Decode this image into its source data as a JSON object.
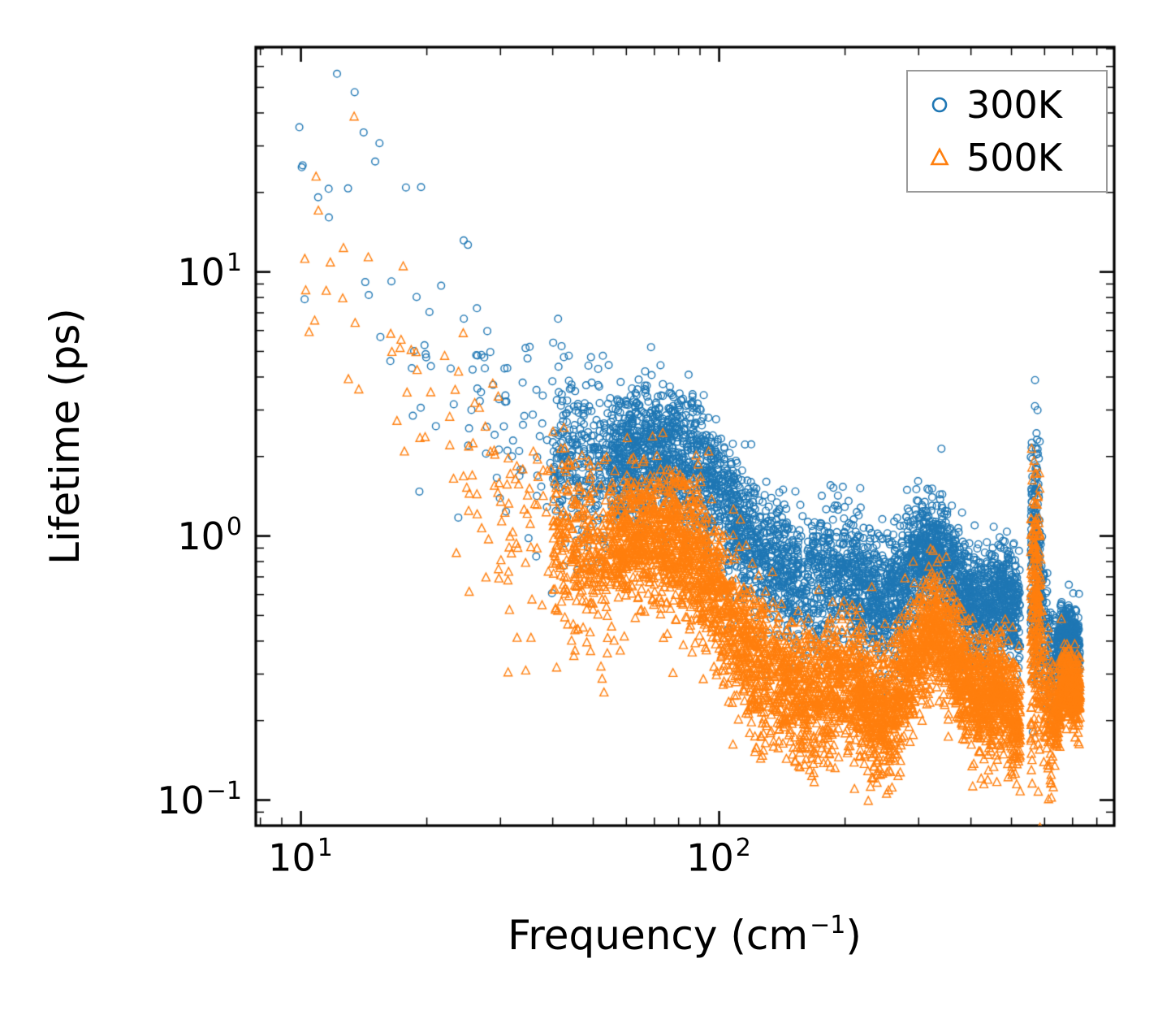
{
  "chart_data": {
    "type": "scatter",
    "title": "",
    "xlabel": "Frequency (cm⁻¹)",
    "xlabel_parts": {
      "pre": "Frequency (cm",
      "sup": "−1",
      "post": ")"
    },
    "ylabel": "Lifetime (ps)",
    "xscale": "log",
    "yscale": "log",
    "xlim": [
      7.8,
      880
    ],
    "ylim": [
      0.08,
      71
    ],
    "grid": false,
    "xticks": [
      {
        "value": 10,
        "base": "10",
        "exp": "1"
      },
      {
        "value": 100,
        "base": "10",
        "exp": "2"
      }
    ],
    "yticks": [
      {
        "value": 0.1,
        "base": "10",
        "exp": "−1"
      },
      {
        "value": 1,
        "base": "10",
        "exp": "0"
      },
      {
        "value": 10,
        "base": "10",
        "exp": "1"
      }
    ],
    "legend": {
      "position": "upper right",
      "items": [
        {
          "label": "300K",
          "marker": "circle",
          "color": "#1f77b4"
        },
        {
          "label": "500K",
          "marker": "triangle",
          "color": "#ff7f0e"
        }
      ]
    },
    "representation": "dense scatter summarized as log-log median trend anchors [frequency cm^-1, lifetime ps] plus frequency bands [fmin, fmax, point_count, vertical_spread_dex]",
    "series": [
      {
        "name": "300K",
        "marker": "circle",
        "color": "#1f77b4",
        "trend_loglog": [
          [
            9.5,
            18
          ],
          [
            10,
            20
          ],
          [
            12,
            26
          ],
          [
            14,
            18
          ],
          [
            16,
            9
          ],
          [
            18,
            6.5
          ],
          [
            20,
            5
          ],
          [
            23,
            4
          ],
          [
            26,
            3.3
          ],
          [
            30,
            2.8
          ],
          [
            35,
            2.4
          ],
          [
            40,
            2.15
          ],
          [
            45,
            2.0
          ],
          [
            50,
            1.9
          ],
          [
            55,
            1.95
          ],
          [
            60,
            2.05
          ],
          [
            70,
            2.1
          ],
          [
            80,
            2.05
          ],
          [
            90,
            1.85
          ],
          [
            100,
            1.45
          ],
          [
            110,
            1.15
          ],
          [
            120,
            0.95
          ],
          [
            130,
            0.85
          ],
          [
            145,
            0.72
          ],
          [
            160,
            0.64
          ],
          [
            175,
            0.68
          ],
          [
            190,
            0.73
          ],
          [
            205,
            0.72
          ],
          [
            220,
            0.64
          ],
          [
            240,
            0.55
          ],
          [
            255,
            0.58
          ],
          [
            270,
            0.66
          ],
          [
            285,
            0.76
          ],
          [
            300,
            0.85
          ],
          [
            315,
            0.9
          ],
          [
            330,
            0.88
          ],
          [
            345,
            0.82
          ],
          [
            360,
            0.74
          ],
          [
            375,
            0.66
          ],
          [
            390,
            0.6
          ],
          [
            410,
            0.56
          ],
          [
            430,
            0.54
          ],
          [
            450,
            0.58
          ],
          [
            470,
            0.6
          ],
          [
            490,
            0.55
          ],
          [
            510,
            0.5
          ],
          [
            525,
            0.48
          ],
          [
            556,
            0.85
          ],
          [
            570,
            0.9
          ],
          [
            585,
            0.75
          ],
          [
            600,
            0.4
          ],
          [
            620,
            0.33
          ],
          [
            640,
            0.33
          ],
          [
            660,
            0.44
          ],
          [
            690,
            0.42
          ],
          [
            730,
            0.36
          ]
        ],
        "bands": [
          [
            9.8,
            16,
            16,
            0.3
          ],
          [
            16,
            25,
            22,
            0.25
          ],
          [
            25,
            40,
            60,
            0.2
          ],
          [
            40,
            55,
            280,
            0.15
          ],
          [
            55,
            95,
            900,
            0.13
          ],
          [
            95,
            130,
            480,
            0.13
          ],
          [
            130,
            210,
            650,
            0.12
          ],
          [
            210,
            300,
            650,
            0.12
          ],
          [
            300,
            430,
            750,
            0.1
          ],
          [
            430,
            525,
            450,
            0.1
          ],
          [
            556,
            585,
            220,
            0.22
          ],
          [
            585,
            640,
            130,
            0.12
          ],
          [
            640,
            730,
            360,
            0.06
          ]
        ]
      },
      {
        "name": "500K",
        "marker": "triangle",
        "color": "#ff7f0e",
        "trend_loglog": [
          [
            9.5,
            8
          ],
          [
            10,
            10
          ],
          [
            12,
            15
          ],
          [
            14,
            8
          ],
          [
            16,
            4.5
          ],
          [
            18,
            3.5
          ],
          [
            20,
            3.0
          ],
          [
            23,
            2.4
          ],
          [
            26,
            2.0
          ],
          [
            30,
            1.5
          ],
          [
            35,
            1.2
          ],
          [
            40,
            1.0
          ],
          [
            45,
            0.9
          ],
          [
            50,
            0.85
          ],
          [
            55,
            0.9
          ],
          [
            60,
            0.95
          ],
          [
            70,
            1.0
          ],
          [
            80,
            0.95
          ],
          [
            90,
            0.8
          ],
          [
            100,
            0.6
          ],
          [
            110,
            0.42
          ],
          [
            120,
            0.34
          ],
          [
            130,
            0.3
          ],
          [
            145,
            0.27
          ],
          [
            160,
            0.25
          ],
          [
            175,
            0.26
          ],
          [
            190,
            0.27
          ],
          [
            205,
            0.27
          ],
          [
            220,
            0.24
          ],
          [
            240,
            0.21
          ],
          [
            255,
            0.22
          ],
          [
            270,
            0.26
          ],
          [
            285,
            0.31
          ],
          [
            300,
            0.36
          ],
          [
            315,
            0.42
          ],
          [
            330,
            0.44
          ],
          [
            345,
            0.42
          ],
          [
            360,
            0.36
          ],
          [
            375,
            0.31
          ],
          [
            390,
            0.28
          ],
          [
            410,
            0.25
          ],
          [
            430,
            0.24
          ],
          [
            450,
            0.25
          ],
          [
            470,
            0.26
          ],
          [
            490,
            0.23
          ],
          [
            510,
            0.21
          ],
          [
            525,
            0.2
          ],
          [
            556,
            0.5
          ],
          [
            570,
            0.55
          ],
          [
            585,
            0.45
          ],
          [
            600,
            0.25
          ],
          [
            620,
            0.2
          ],
          [
            640,
            0.2
          ],
          [
            660,
            0.27
          ],
          [
            690,
            0.28
          ],
          [
            730,
            0.25
          ]
        ],
        "bands": [
          [
            9.8,
            16,
            16,
            0.28
          ],
          [
            16,
            25,
            24,
            0.25
          ],
          [
            25,
            40,
            70,
            0.22
          ],
          [
            40,
            55,
            300,
            0.16
          ],
          [
            55,
            95,
            950,
            0.14
          ],
          [
            95,
            130,
            500,
            0.14
          ],
          [
            130,
            210,
            700,
            0.13
          ],
          [
            210,
            300,
            700,
            0.13
          ],
          [
            300,
            430,
            780,
            0.11
          ],
          [
            430,
            525,
            470,
            0.11
          ],
          [
            556,
            585,
            230,
            0.26
          ],
          [
            585,
            640,
            140,
            0.13
          ],
          [
            640,
            730,
            380,
            0.08
          ]
        ]
      }
    ]
  }
}
